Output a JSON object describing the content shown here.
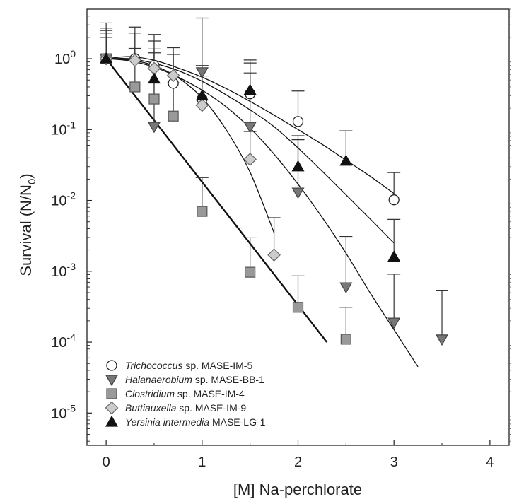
{
  "chart_data": {
    "type": "scatter",
    "xlabel": "[M] Na-perchlorate",
    "ylabel_main": "Survival (N/N",
    "ylabel_sub": "0",
    "ylabel_end": ")",
    "xlim": [
      -0.2,
      4.2
    ],
    "ylim": [
      3.5e-06,
      5
    ],
    "yscale": "log",
    "x_ticks": [
      0,
      1,
      2,
      3,
      4
    ],
    "x_tick_labels": [
      "0",
      "1",
      "2",
      "3",
      "4"
    ],
    "y_ticks": [
      {
        "value": 1,
        "mant": "10",
        "exp": "0"
      },
      {
        "value": 0.1,
        "mant": "10",
        "exp": "-1"
      },
      {
        "value": 0.01,
        "mant": "10",
        "exp": "-2"
      },
      {
        "value": 0.001,
        "mant": "10",
        "exp": "-3"
      },
      {
        "value": 0.0001,
        "mant": "10",
        "exp": "-4"
      },
      {
        "value": 1e-05,
        "mant": "10",
        "exp": "-5"
      }
    ],
    "legend_position": "bottom-left",
    "series": [
      {
        "name_italic": "Trichococcus",
        "name_rest": " sp. MASE-IM-5",
        "marker": "circle",
        "fill": "#ffffff",
        "stroke": "#222222",
        "points": [
          {
            "x": 0,
            "y": 1.0,
            "err": 1.0
          },
          {
            "x": 0.3,
            "y": 1.0,
            "err": 1.8
          },
          {
            "x": 0.5,
            "y": 0.8,
            "err": 1.4
          },
          {
            "x": 0.7,
            "y": 0.45,
            "err": 0.7
          },
          {
            "x": 1.0,
            "y": 0.27,
            "err": 0.45
          },
          {
            "x": 1.5,
            "y": 0.32,
            "err": 0.55
          },
          {
            "x": 2.0,
            "y": 0.13,
            "err": 0.22
          },
          {
            "x": 3.0,
            "y": 0.0102,
            "err": 0.0145
          }
        ],
        "fit": [
          [
            0,
            1.0
          ],
          [
            0.25,
            1.07
          ],
          [
            0.5,
            0.95
          ],
          [
            0.75,
            0.74
          ],
          [
            1.0,
            0.55
          ],
          [
            1.25,
            0.38
          ],
          [
            1.5,
            0.25
          ],
          [
            1.75,
            0.16
          ],
          [
            2.0,
            0.1
          ],
          [
            2.25,
            0.062
          ],
          [
            2.5,
            0.037
          ],
          [
            2.75,
            0.022
          ],
          [
            3.0,
            0.0125
          ]
        ]
      },
      {
        "name_italic": "Halanaerobium",
        "name_rest": " sp. MASE-BB-1",
        "marker": "triangle-down",
        "fill": "#777777",
        "stroke": "#444444",
        "points": [
          {
            "x": 0,
            "y": 1.0,
            "err": 1.7
          },
          {
            "x": 0.5,
            "y": 0.11,
            "err": 1.1
          },
          {
            "x": 1.0,
            "y": 0.65,
            "err": 3.1
          },
          {
            "x": 1.5,
            "y": 0.11,
            "err": 0.52
          },
          {
            "x": 2.0,
            "y": 0.013,
            "err": 0.059
          },
          {
            "x": 2.5,
            "y": 0.0006,
            "err": 0.0025
          },
          {
            "x": 3.0,
            "y": 0.00019,
            "err": 0.00072
          },
          {
            "x": 3.5,
            "y": 0.00011,
            "err": 0.00043
          }
        ],
        "fit": [
          [
            0,
            1.0
          ],
          [
            0.25,
            0.93
          ],
          [
            0.5,
            0.76
          ],
          [
            0.75,
            0.55
          ],
          [
            1.0,
            0.36
          ],
          [
            1.25,
            0.21
          ],
          [
            1.5,
            0.105
          ],
          [
            1.75,
            0.045
          ],
          [
            2.0,
            0.017
          ],
          [
            2.25,
            0.0058
          ],
          [
            2.5,
            0.0018
          ],
          [
            2.75,
            0.0005
          ],
          [
            3.0,
            0.00015
          ],
          [
            3.25,
            4.5e-05
          ]
        ]
      },
      {
        "name_italic": "Clostridium",
        "name_rest": " sp. MASE-IM-4",
        "marker": "square",
        "fill": "#999999",
        "stroke": "#555555",
        "points": [
          {
            "x": 0,
            "y": 1.0,
            "err": 2.2
          },
          {
            "x": 0.3,
            "y": 0.4,
            "err": 1.0
          },
          {
            "x": 0.5,
            "y": 0.27,
            "err": 0.55
          },
          {
            "x": 0.7,
            "y": 0.155,
            "err": 0.3
          },
          {
            "x": 1.0,
            "y": 0.007,
            "err": 0.014
          },
          {
            "x": 1.5,
            "y": 0.00097,
            "err": 0.002
          },
          {
            "x": 2.0,
            "y": 0.00031,
            "err": 0.00055
          },
          {
            "x": 2.5,
            "y": 0.00011,
            "err": 0.0002
          }
        ],
        "fit": [
          [
            0,
            1.0
          ],
          [
            2.3,
            0.0001
          ]
        ]
      },
      {
        "name_italic": "Buttiauxella",
        "name_rest": " sp. MASE-IM-9",
        "marker": "diamond",
        "fill": "#cccccc",
        "stroke": "#666666",
        "points": [
          {
            "x": 0,
            "y": 1.0,
            "err": 1.3
          },
          {
            "x": 0.3,
            "y": 0.95,
            "err": 1.35
          },
          {
            "x": 0.5,
            "y": 0.73,
            "err": 1.05
          },
          {
            "x": 0.7,
            "y": 0.58,
            "err": 0.85
          },
          {
            "x": 1.0,
            "y": 0.22,
            "err": 0.35
          },
          {
            "x": 1.5,
            "y": 0.038,
            "err": 0.056
          },
          {
            "x": 1.75,
            "y": 0.0017,
            "err": 0.004
          }
        ],
        "fit": [
          [
            0,
            1.0
          ],
          [
            0.25,
            0.96
          ],
          [
            0.5,
            0.8
          ],
          [
            0.75,
            0.54
          ],
          [
            1.0,
            0.28
          ],
          [
            1.25,
            0.1
          ],
          [
            1.5,
            0.025
          ],
          [
            1.75,
            0.0035
          ]
        ]
      },
      {
        "name_italic": "Yersinia intermedia",
        "name_rest": " MASE-LG-1",
        "marker": "triangle-up",
        "fill": "#111111",
        "stroke": "#111111",
        "points": [
          {
            "x": 0,
            "y": 1.0,
            "err": 1.5
          },
          {
            "x": 0.5,
            "y": 0.52,
            "err": 0.85
          },
          {
            "x": 1.0,
            "y": 0.3,
            "err": 0.5
          },
          {
            "x": 1.5,
            "y": 0.36,
            "err": 0.6
          },
          {
            "x": 2.0,
            "y": 0.03,
            "err": 0.052
          },
          {
            "x": 2.5,
            "y": 0.036,
            "err": 0.06
          },
          {
            "x": 3.0,
            "y": 0.0016,
            "err": 0.0038
          }
        ],
        "fit": [
          [
            0,
            1.0
          ],
          [
            0.25,
            1.0
          ],
          [
            0.5,
            0.86
          ],
          [
            0.75,
            0.68
          ],
          [
            1.0,
            0.48
          ],
          [
            1.25,
            0.31
          ],
          [
            1.5,
            0.19
          ],
          [
            1.75,
            0.11
          ],
          [
            2.0,
            0.055
          ],
          [
            2.25,
            0.026
          ],
          [
            2.5,
            0.012
          ],
          [
            2.75,
            0.0055
          ],
          [
            3.0,
            0.0025
          ]
        ]
      }
    ]
  }
}
